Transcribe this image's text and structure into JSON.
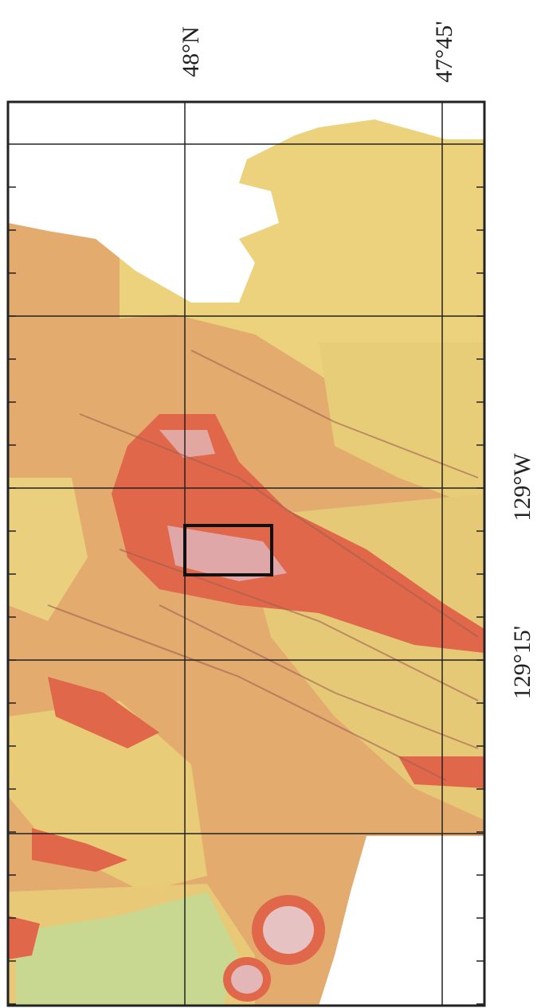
{
  "labels": [
    "48°N",
    "47°45'",
    "129°W",
    "129°15'"
  ]
}
